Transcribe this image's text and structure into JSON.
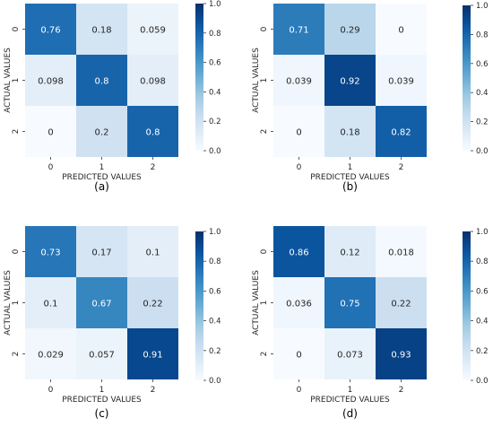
{
  "figure": {
    "colormap": [
      "#f7fbff",
      "#deebf7",
      "#c6dbef",
      "#9ecae1",
      "#6baed6",
      "#4292c6",
      "#2171b5",
      "#08519c",
      "#08306b"
    ]
  },
  "chart_data": [
    {
      "type": "heatmap",
      "caption": "(a)",
      "xlabel": "PREDICTED VALUES",
      "ylabel": "ACTUAL VALUES",
      "x_ticks": [
        "0",
        "1",
        "2"
      ],
      "y_ticks": [
        "0",
        "1",
        "2"
      ],
      "matrix": [
        [
          0.76,
          0.18,
          0.059
        ],
        [
          0.098,
          0.8,
          0.098
        ],
        [
          0,
          0.2,
          0.8
        ]
      ],
      "cell_labels": [
        [
          "0.76",
          "0.18",
          "0.059"
        ],
        [
          "0.098",
          "0.8",
          "0.098"
        ],
        [
          "0",
          "0.2",
          "0.8"
        ]
      ],
      "colorbar_range": [
        0.0,
        1.0
      ],
      "colorbar_ticks": [
        "0.0",
        "0.2",
        "0.4",
        "0.6",
        "0.8",
        "1.0"
      ]
    },
    {
      "type": "heatmap",
      "caption": "(b)",
      "xlabel": "PREDICTED VALUES",
      "ylabel": "ACTUAL VALUES",
      "x_ticks": [
        "0",
        "1",
        "2"
      ],
      "y_ticks": [
        "0",
        "1",
        "2"
      ],
      "matrix": [
        [
          0.71,
          0.29,
          0
        ],
        [
          0.039,
          0.92,
          0.039
        ],
        [
          0,
          0.18,
          0.82
        ]
      ],
      "cell_labels": [
        [
          "0.71",
          "0.29",
          "0"
        ],
        [
          "0.039",
          "0.92",
          "0.039"
        ],
        [
          "0",
          "0.18",
          "0.82"
        ]
      ],
      "colorbar_range": [
        0.0,
        1.0
      ],
      "colorbar_ticks": [
        "0.0",
        "0.2",
        "0.4",
        "0.6",
        "0.8",
        "1.0"
      ]
    },
    {
      "type": "heatmap",
      "caption": "(c)",
      "xlabel": "PREDICTED VALUES",
      "ylabel": "ACTUAL VALUES",
      "x_ticks": [
        "0",
        "1",
        "2"
      ],
      "y_ticks": [
        "0",
        "1",
        "2"
      ],
      "matrix": [
        [
          0.73,
          0.17,
          0.1
        ],
        [
          0.1,
          0.67,
          0.22
        ],
        [
          0.029,
          0.057,
          0.91
        ]
      ],
      "cell_labels": [
        [
          "0.73",
          "0.17",
          "0.1"
        ],
        [
          "0.1",
          "0.67",
          "0.22"
        ],
        [
          "0.029",
          "0.057",
          "0.91"
        ]
      ],
      "colorbar_range": [
        0.0,
        1.0
      ],
      "colorbar_ticks": [
        "0.0",
        "0.2",
        "0.4",
        "0.6",
        "0.8",
        "1.0"
      ]
    },
    {
      "type": "heatmap",
      "caption": "(d)",
      "xlabel": "PREDICTED VALUES",
      "ylabel": "ACTUAL VALUES",
      "x_ticks": [
        "0",
        "1",
        "2"
      ],
      "y_ticks": [
        "0",
        "1",
        "2"
      ],
      "matrix": [
        [
          0.86,
          0.12,
          0.018
        ],
        [
          0.036,
          0.75,
          0.22
        ],
        [
          0,
          0.073,
          0.93
        ]
      ],
      "cell_labels": [
        [
          "0.86",
          "0.12",
          "0.018"
        ],
        [
          "0.036",
          "0.75",
          "0.22"
        ],
        [
          "0",
          "0.073",
          "0.93"
        ]
      ],
      "colorbar_range": [
        0.0,
        1.0
      ],
      "colorbar_ticks": [
        "0.0",
        "0.2",
        "0.4",
        "0.6",
        "0.8",
        "1.0"
      ]
    }
  ]
}
